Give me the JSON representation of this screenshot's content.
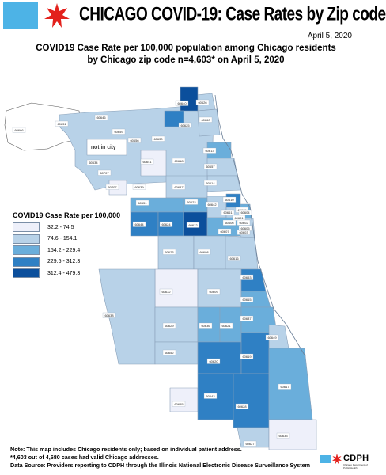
{
  "header": {
    "title": "CHICAGO COVID-19: Case Rates by Zip code",
    "date": "April 5, 2020",
    "subtitle_line1": "COVID19 Case Rate per 100,000 population among Chicago residents",
    "subtitle_line2": "by Chicago zip code n=4,603* on April 5, 2020"
  },
  "legend": {
    "title": "COVID19 Case Rate per 100,000",
    "items": [
      {
        "label": "32.2 - 74.5",
        "color": "#eef0fa"
      },
      {
        "label": "74.6 - 154.1",
        "color": "#b8d2e8"
      },
      {
        "label": "154.2 - 229.4",
        "color": "#6aaedb"
      },
      {
        "label": "229.5 - 312.3",
        "color": "#2f80c4"
      },
      {
        "label": "312.4 - 479.3",
        "color": "#0b4f9c"
      }
    ]
  },
  "map": {
    "outside_label": "not in city",
    "zip_labels": [
      "60666",
      "60631",
      "60646",
      "60640",
      "60626",
      "60659",
      "60656",
      "60630",
      "60625",
      "60660",
      "60634",
      "60641",
      "60618",
      "60613",
      "60657",
      "60707",
      "60707",
      "60639",
      "60647",
      "60614",
      "60651",
      "60622",
      "60642",
      "60610",
      "60611",
      "60644",
      "60624",
      "60612",
      "60661",
      "60601",
      "60602",
      "60607",
      "60606",
      "60603",
      "60623",
      "60608",
      "60616",
      "60653",
      "60632",
      "60609",
      "60615",
      "60638",
      "60629",
      "60636",
      "60621",
      "60637",
      "60649",
      "60652",
      "60620",
      "60619",
      "60643",
      "60628",
      "60617",
      "60655",
      "60627",
      "60633",
      "60604",
      "60605"
    ]
  },
  "footer": {
    "line1": "Note: This map includes Chicago residents only; based on individual patient address.",
    "line2": "*4,603 out of 4,680 cases had valid Chicago addresses.",
    "line3": "Data Source: Providers reporting to CDPH through the Illinois National Electronic Disease Surveillance System"
  },
  "logo": {
    "text": "CDPH",
    "subtext": "Chicago Department of Public Health"
  }
}
